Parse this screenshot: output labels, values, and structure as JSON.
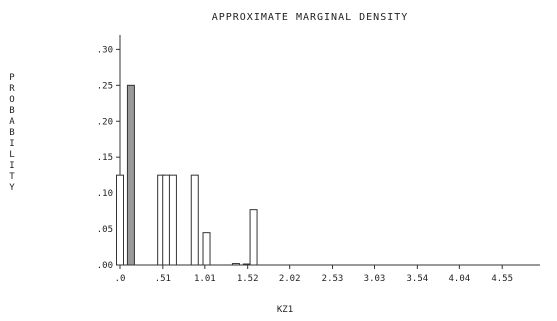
{
  "chart_data": {
    "type": "bar",
    "title": "APPROXIMATE MARGINAL DENSITY",
    "xlabel": "KZ1",
    "ylabel": "PROBABILITY",
    "xlim": [
      0,
      5.0
    ],
    "ylim": [
      0,
      0.32
    ],
    "x_ticks": [
      {
        "value": 0,
        "label": ".0"
      },
      {
        "value": 0.51,
        "label": ".51"
      },
      {
        "value": 1.01,
        "label": "1.01"
      },
      {
        "value": 1.52,
        "label": "1.52"
      },
      {
        "value": 2.02,
        "label": "2.02"
      },
      {
        "value": 2.53,
        "label": "2.53"
      },
      {
        "value": 3.03,
        "label": "3.03"
      },
      {
        "value": 3.54,
        "label": "3.54"
      },
      {
        "value": 4.04,
        "label": "4.04"
      },
      {
        "value": 4.55,
        "label": "4.55"
      }
    ],
    "y_ticks": [
      {
        "value": 0.0,
        "label": ".00"
      },
      {
        "value": 0.05,
        "label": ".05"
      },
      {
        "value": 0.1,
        "label": ".10"
      },
      {
        "value": 0.15,
        "label": ".15"
      },
      {
        "value": 0.2,
        "label": ".20"
      },
      {
        "value": 0.25,
        "label": ".25"
      },
      {
        "value": 0.3,
        "label": ".30"
      }
    ],
    "bars": [
      {
        "x": 0.0,
        "value": 0.125,
        "fill": "white"
      },
      {
        "x": 0.13,
        "value": 0.25,
        "fill": "gray"
      },
      {
        "x": 0.49,
        "value": 0.125,
        "fill": "white"
      },
      {
        "x": 0.55,
        "value": 0.125,
        "fill": "white"
      },
      {
        "x": 0.63,
        "value": 0.125,
        "fill": "white"
      },
      {
        "x": 0.89,
        "value": 0.125,
        "fill": "white"
      },
      {
        "x": 1.03,
        "value": 0.045,
        "fill": "white"
      },
      {
        "x": 1.38,
        "value": 0.002,
        "fill": "white"
      },
      {
        "x": 1.51,
        "value": 0.001,
        "fill": "white"
      },
      {
        "x": 1.59,
        "value": 0.077,
        "fill": "white"
      }
    ],
    "grid": false,
    "colors": {
      "gray_bar": "#999999",
      "outline": "#333333",
      "white_bar": "#ffffff"
    }
  }
}
